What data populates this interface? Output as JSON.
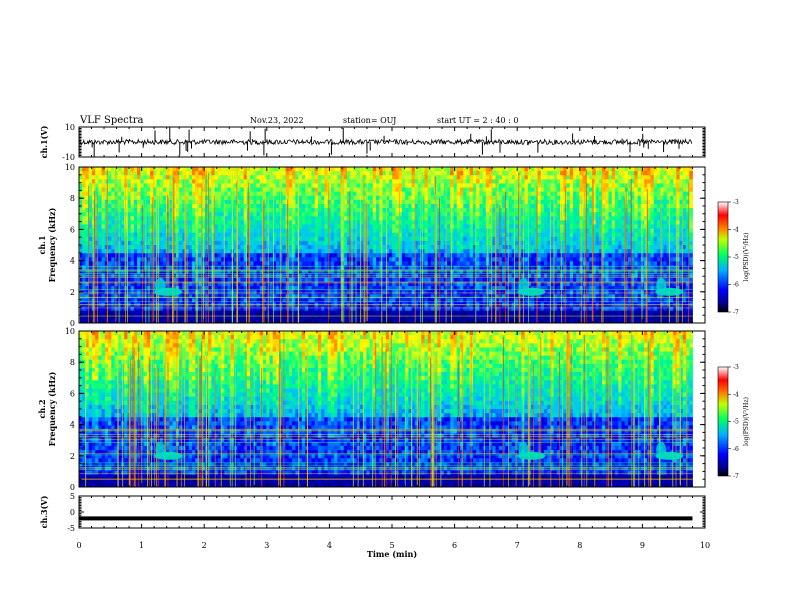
{
  "header": {
    "title": "VLF Spectra",
    "date": "Nov.23, 2022",
    "station": "station= OUJ",
    "start": "start  UT =   2 : 40 : 0"
  },
  "chart_data": [
    {
      "type": "line",
      "panel": "ch1-waveform",
      "ylabel": "ch.1(V)",
      "ylim": [
        -10,
        10
      ],
      "yticks": [
        "10",
        "-10"
      ],
      "x_range_min": [
        0,
        9.8
      ],
      "baseline_v": 0
    },
    {
      "type": "heatmap",
      "panel": "ch1-spectrogram",
      "ylabel": "ch.1\nFrequency (kHz)",
      "ylim": [
        0,
        10
      ],
      "yticks": [
        "10",
        "8",
        "6",
        "4",
        "2",
        "0"
      ],
      "colorbar": {
        "label": "log(PSD)(V²/Hz)",
        "range": [
          -7,
          -3
        ],
        "ticks": [
          "-3",
          "-4",
          "-5",
          "-6",
          "-7"
        ]
      },
      "x_range_min": [
        0,
        9.8
      ],
      "events_min": [
        1.3,
        7.1,
        9.3
      ]
    },
    {
      "type": "heatmap",
      "panel": "ch2-spectrogram",
      "ylabel": "ch.2\nFrequency (kHz)",
      "ylim": [
        0,
        10
      ],
      "yticks": [
        "10",
        "8",
        "6",
        "4",
        "2",
        "0"
      ],
      "colorbar": {
        "label": "log(PSD)(V²/Hz)",
        "range": [
          -7,
          -3
        ],
        "ticks": [
          "-3",
          "-4",
          "-5",
          "-6",
          "-7"
        ]
      },
      "x_range_min": [
        0,
        9.8
      ],
      "events_min": [
        1.3,
        7.1,
        9.3
      ]
    },
    {
      "type": "line",
      "panel": "ch3-waveform",
      "ylabel": "ch.3(V)",
      "ylim": [
        -5,
        5
      ],
      "yticks": [
        "5",
        "0",
        "-5"
      ],
      "x_range_min": [
        0,
        9.8
      ],
      "baseline_v": -2
    }
  ],
  "xaxis": {
    "label": "Time  (min)",
    "range": [
      0,
      10
    ],
    "ticks": [
      "0",
      "1",
      "2",
      "3",
      "4",
      "5",
      "6",
      "7",
      "8",
      "9",
      "10"
    ]
  },
  "colors": {
    "axis": "#000000",
    "colormap": [
      "#000000",
      "#000080",
      "#0000ff",
      "#00c0ff",
      "#00ff80",
      "#ffff00",
      "#ff8000",
      "#ff0000",
      "#ffffff"
    ]
  }
}
